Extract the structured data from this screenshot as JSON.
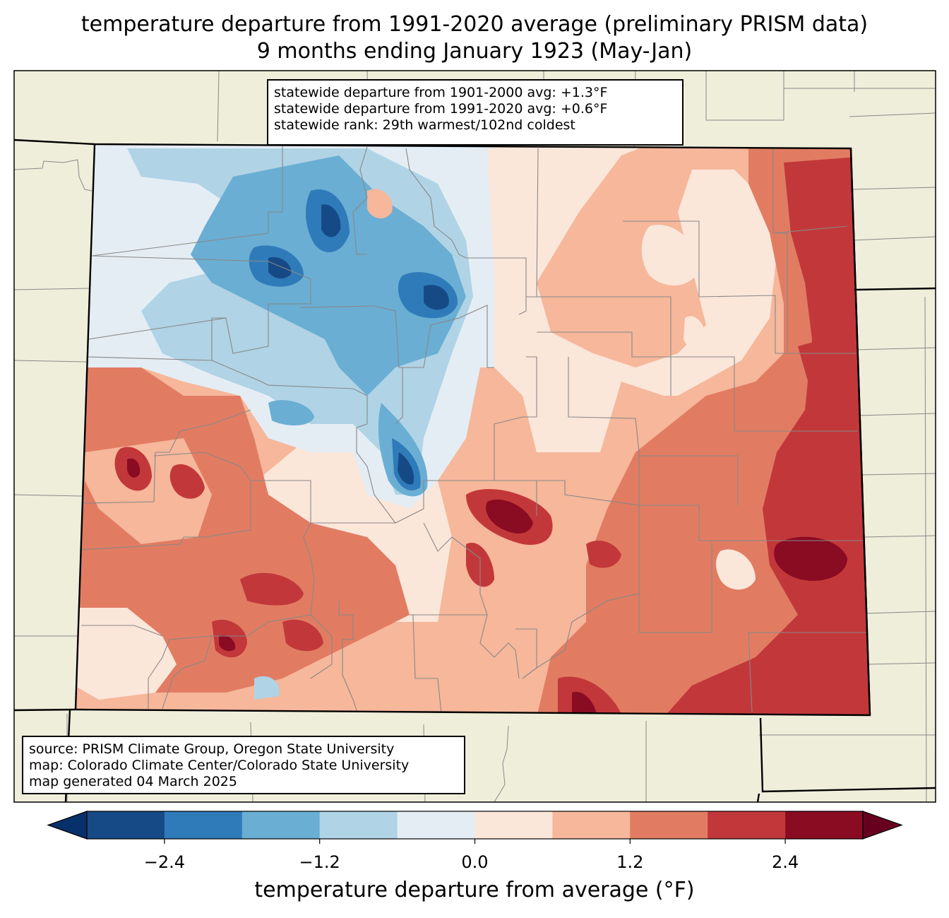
{
  "title": {
    "line1": "temperature departure from 1991-2020 average (preliminary PRISM data)",
    "line2": "9 months ending January 1923 (May-Jan)"
  },
  "stats": {
    "line1": "statewide departure from 1901-2000 avg: +1.3°F",
    "line2": "statewide departure from 1991-2020 avg: +0.6°F",
    "line3": "statewide rank: 29th warmest/102nd coldest"
  },
  "source": {
    "line1": "source: PRISM Climate Group, Oregon State University",
    "line2": "map: Colorado Climate Center/Colorado State University",
    "line3": "map generated 04 March 2025"
  },
  "colorbar": {
    "label": "temperature departure from average (°F)",
    "ticks": [
      "−2.4",
      "−1.2",
      "0.0",
      "1.2",
      "2.4"
    ],
    "tick_values": [
      -2.4,
      -1.2,
      0.0,
      1.2,
      2.4
    ],
    "min": -3.0,
    "max": 3.0,
    "step": 0.6,
    "colors": [
      "#08306b",
      "#164a86",
      "#2f7bba",
      "#6aaed3",
      "#b0d3e6",
      "#e4edf4",
      "#fbe6da",
      "#f6b79b",
      "#e17c62",
      "#c2383a",
      "#8a0c23",
      "#67001f"
    ]
  },
  "map_colors": {
    "land": "#efeedb",
    "county_lines": "#888888",
    "state_lines": "#000000"
  }
}
